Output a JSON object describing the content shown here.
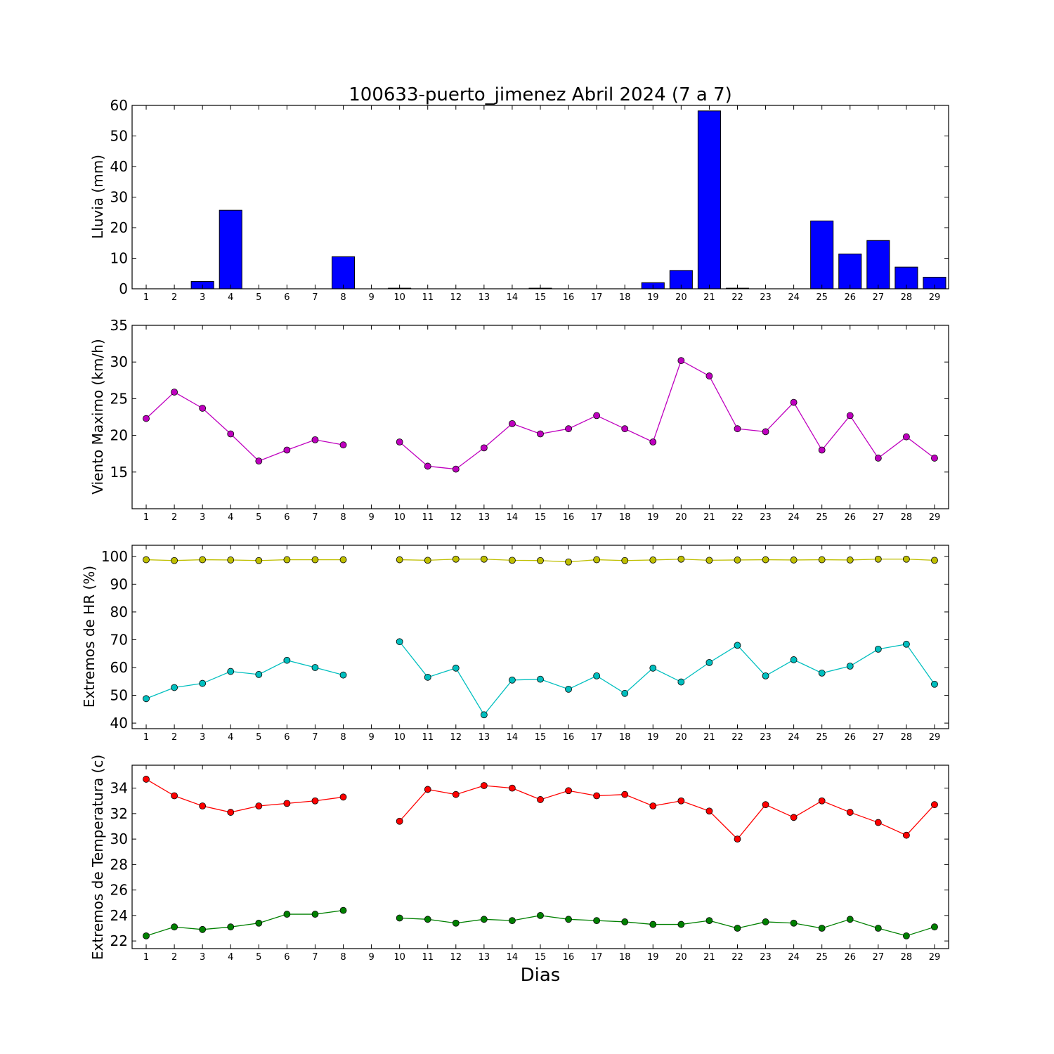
{
  "figure": {
    "title": "100633-puerto_jimenez Abril 2024  (7 a 7)",
    "xlabel": "Dias"
  },
  "chart_data": [
    {
      "id": "lluvia",
      "type": "bar",
      "ylabel": "Lluvia (mm)",
      "ylim": [
        0,
        60
      ],
      "yticks": [
        0,
        10,
        20,
        30,
        40,
        50,
        60
      ],
      "x": [
        1,
        2,
        3,
        4,
        5,
        6,
        7,
        8,
        9,
        10,
        11,
        12,
        13,
        14,
        15,
        16,
        17,
        18,
        19,
        20,
        21,
        22,
        23,
        24,
        25,
        26,
        27,
        28,
        29
      ],
      "series": [
        {
          "color": "#0000ff",
          "values": [
            0,
            0,
            2.4,
            25.7,
            0,
            0,
            0,
            10.5,
            null,
            0.2,
            0,
            0,
            0,
            0,
            0.2,
            0,
            0,
            0,
            2.0,
            6.0,
            58.2,
            0.2,
            0,
            0,
            22.2,
            11.4,
            15.8,
            7.1,
            3.8
          ]
        }
      ],
      "grid": false
    },
    {
      "id": "viento",
      "type": "line",
      "ylabel": "Viento Maximo (km/h)",
      "ylim": [
        10,
        35
      ],
      "yticks": [
        15,
        20,
        25,
        30,
        35
      ],
      "x": [
        1,
        2,
        3,
        4,
        5,
        6,
        7,
        8,
        9,
        10,
        11,
        12,
        13,
        14,
        15,
        16,
        17,
        18,
        19,
        20,
        21,
        22,
        23,
        24,
        25,
        26,
        27,
        28,
        29
      ],
      "series": [
        {
          "color": "#bf00bf",
          "values": [
            22.3,
            25.9,
            23.7,
            20.2,
            16.5,
            18.0,
            19.4,
            18.7,
            null,
            19.1,
            15.8,
            15.4,
            18.3,
            21.6,
            20.2,
            20.9,
            22.7,
            20.9,
            19.1,
            30.2,
            28.1,
            20.9,
            20.5,
            24.5,
            18.0,
            22.7,
            16.9,
            19.8,
            16.9
          ]
        }
      ],
      "grid": false
    },
    {
      "id": "humedad",
      "type": "line",
      "ylabel": "Extremos de HR (%)",
      "ylim": [
        38,
        104
      ],
      "yticks": [
        40,
        50,
        60,
        70,
        80,
        90,
        100
      ],
      "x": [
        1,
        2,
        3,
        4,
        5,
        6,
        7,
        8,
        9,
        10,
        11,
        12,
        13,
        14,
        15,
        16,
        17,
        18,
        19,
        20,
        21,
        22,
        23,
        24,
        25,
        26,
        27,
        28,
        29
      ],
      "series": [
        {
          "color": "#bfbf00",
          "values": [
            98.8,
            98.5,
            98.8,
            98.7,
            98.5,
            98.8,
            98.8,
            98.8,
            null,
            98.8,
            98.6,
            99.0,
            99.0,
            98.6,
            98.5,
            98.0,
            98.8,
            98.5,
            98.7,
            99.0,
            98.6,
            98.7,
            98.8,
            98.7,
            98.8,
            98.7,
            99.0,
            99.0,
            98.6
          ]
        },
        {
          "color": "#00bfbf",
          "values": [
            48.8,
            52.8,
            54.3,
            58.6,
            57.5,
            62.6,
            60.0,
            57.3,
            null,
            69.3,
            56.5,
            59.8,
            43.0,
            55.5,
            55.8,
            52.2,
            57.0,
            50.7,
            59.8,
            54.8,
            61.8,
            68.0,
            57.0,
            62.8,
            58.0,
            60.5,
            66.6,
            68.4,
            54.0
          ]
        }
      ],
      "grid": false
    },
    {
      "id": "temperatura",
      "type": "line",
      "ylabel": "Extremos de Temperatura (c)",
      "ylim": [
        21.4,
        35.8
      ],
      "yticks": [
        22,
        24,
        26,
        28,
        30,
        32,
        34
      ],
      "x": [
        1,
        2,
        3,
        4,
        5,
        6,
        7,
        8,
        9,
        10,
        11,
        12,
        13,
        14,
        15,
        16,
        17,
        18,
        19,
        20,
        21,
        22,
        23,
        24,
        25,
        26,
        27,
        28,
        29
      ],
      "series": [
        {
          "color": "#ff0000",
          "values": [
            34.7,
            33.4,
            32.6,
            32.1,
            32.6,
            32.8,
            33.0,
            33.3,
            null,
            31.4,
            33.9,
            33.5,
            34.2,
            34.0,
            33.1,
            33.8,
            33.4,
            33.5,
            32.6,
            33.0,
            32.2,
            30.0,
            32.7,
            31.7,
            33.0,
            32.1,
            31.3,
            30.3,
            32.7
          ]
        },
        {
          "color": "#008000",
          "values": [
            22.4,
            23.1,
            22.9,
            23.1,
            23.4,
            24.1,
            24.1,
            24.4,
            null,
            23.8,
            23.7,
            23.4,
            23.7,
            23.6,
            24.0,
            23.7,
            23.6,
            23.5,
            23.3,
            23.3,
            23.6,
            23.0,
            23.5,
            23.4,
            23.0,
            23.7,
            23.0,
            22.4,
            23.1
          ]
        }
      ],
      "grid": false
    }
  ]
}
